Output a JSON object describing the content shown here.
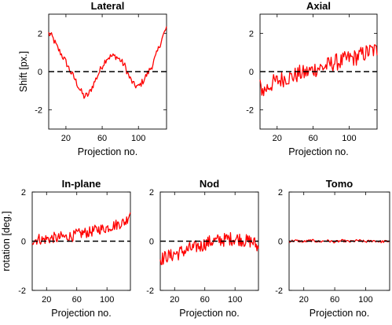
{
  "chart_data": [
    {
      "type": "line",
      "title": "Lateral",
      "xlabel": "Projection no.",
      "ylabel": "Shift [px.]",
      "xlim": [
        1,
        131
      ],
      "ylim": [
        -3,
        3
      ],
      "xticks": [
        20,
        60,
        100
      ],
      "yticks": [
        -2,
        0,
        2
      ],
      "series_color": "#ff0000",
      "zero_line": true,
      "series": [
        {
          "x": [
            1,
            5,
            10,
            15,
            20,
            25,
            30,
            35,
            40,
            45,
            50,
            55,
            60,
            65,
            70,
            75,
            80,
            85,
            90,
            95,
            100,
            105,
            110,
            115,
            120,
            125,
            131
          ],
          "values": [
            2.0,
            1.8,
            1.3,
            0.9,
            0.5,
            0.0,
            -0.4,
            -0.9,
            -1.3,
            -1.2,
            -0.7,
            -0.2,
            0.3,
            0.7,
            0.8,
            0.8,
            0.6,
            0.3,
            -0.3,
            -0.7,
            -0.8,
            -0.5,
            -0.1,
            0.3,
            0.9,
            1.6,
            2.3
          ]
        }
      ]
    },
    {
      "type": "line",
      "title": "Axial",
      "xlabel": "Projection no.",
      "ylabel": "",
      "xlim": [
        1,
        131
      ],
      "ylim": [
        -3,
        3
      ],
      "xticks": [
        20,
        60,
        100
      ],
      "yticks": [
        -2,
        0,
        2
      ],
      "series_color": "#ff0000",
      "zero_line": true,
      "series": [
        {
          "x": [
            1,
            5,
            10,
            15,
            20,
            25,
            30,
            35,
            40,
            45,
            50,
            55,
            60,
            65,
            70,
            75,
            80,
            85,
            90,
            95,
            100,
            105,
            110,
            115,
            120,
            125,
            131
          ],
          "values": [
            -0.8,
            -1.0,
            -0.8,
            -0.6,
            -0.5,
            -0.4,
            -0.3,
            -0.3,
            -0.2,
            -0.1,
            -0.1,
            0.0,
            0.1,
            0.2,
            0.2,
            0.3,
            0.4,
            0.5,
            0.5,
            0.6,
            0.7,
            0.7,
            0.8,
            0.9,
            1.0,
            1.1,
            1.1
          ]
        }
      ]
    },
    {
      "type": "line",
      "title": "In-plane",
      "xlabel": "Projection no.",
      "ylabel": "rotation [deg.]",
      "xlim": [
        1,
        131
      ],
      "ylim": [
        -2,
        2
      ],
      "xticks": [
        20,
        60,
        100
      ],
      "yticks": [
        -2,
        0,
        2
      ],
      "series_color": "#ff0000",
      "zero_line": true,
      "series": [
        {
          "x": [
            1,
            5,
            10,
            15,
            20,
            25,
            30,
            35,
            40,
            45,
            50,
            55,
            60,
            65,
            70,
            75,
            80,
            85,
            90,
            95,
            100,
            105,
            110,
            115,
            120,
            125,
            131
          ],
          "values": [
            0.05,
            0.05,
            0.1,
            0.05,
            0.1,
            0.1,
            0.15,
            0.1,
            0.2,
            0.15,
            0.2,
            0.2,
            0.3,
            0.3,
            0.35,
            0.35,
            0.4,
            0.45,
            0.5,
            0.5,
            0.55,
            0.6,
            0.65,
            0.7,
            0.75,
            0.8,
            1.2
          ]
        }
      ]
    },
    {
      "type": "line",
      "title": "Nod",
      "xlabel": "Projection no.",
      "ylabel": "",
      "xlim": [
        1,
        131
      ],
      "ylim": [
        -2,
        2
      ],
      "xticks": [
        20,
        60,
        100
      ],
      "yticks": [
        -2,
        0,
        2
      ],
      "series_color": "#ff0000",
      "zero_line": true,
      "series": [
        {
          "x": [
            1,
            5,
            10,
            15,
            20,
            25,
            30,
            35,
            40,
            45,
            50,
            55,
            60,
            65,
            70,
            75,
            80,
            85,
            90,
            95,
            100,
            105,
            110,
            115,
            120,
            125,
            131
          ],
          "values": [
            -0.7,
            -0.7,
            -0.6,
            -0.6,
            -0.5,
            -0.5,
            -0.4,
            -0.4,
            -0.3,
            -0.3,
            -0.2,
            -0.2,
            -0.1,
            -0.05,
            0.0,
            0.0,
            0.05,
            0.05,
            0.1,
            0.1,
            0.1,
            0.1,
            0.05,
            0.0,
            0.0,
            -0.05,
            -0.3
          ]
        }
      ]
    },
    {
      "type": "line",
      "title": "Tomo",
      "xlabel": "Projection no.",
      "ylabel": "",
      "xlim": [
        1,
        131
      ],
      "ylim": [
        -2,
        2
      ],
      "xticks": [
        20,
        60,
        100
      ],
      "yticks": [
        -2,
        0,
        2
      ],
      "series_color": "#ff0000",
      "zero_line": true,
      "series": [
        {
          "x": [
            1,
            10,
            20,
            30,
            40,
            50,
            60,
            70,
            80,
            90,
            100,
            110,
            120,
            131
          ],
          "values": [
            0.0,
            0.02,
            -0.02,
            0.03,
            -0.02,
            0.02,
            -0.03,
            0.02,
            -0.02,
            0.03,
            -0.02,
            0.02,
            -0.02,
            0.0
          ]
        }
      ]
    }
  ]
}
